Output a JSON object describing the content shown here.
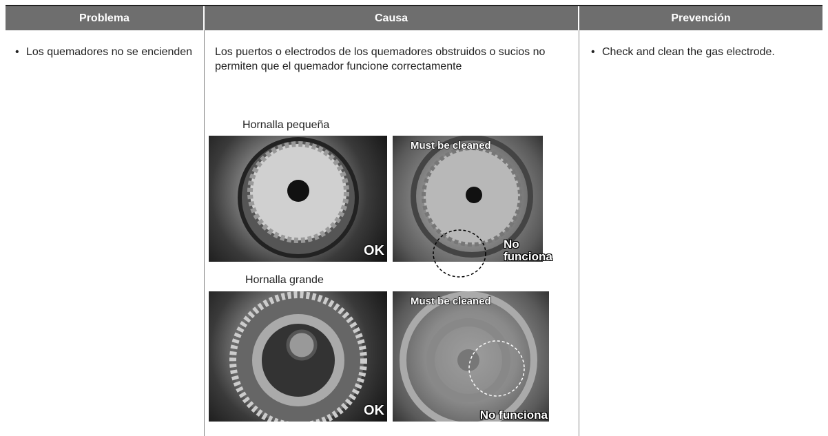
{
  "table": {
    "headers": [
      "Problema",
      "Causa",
      "Prevención"
    ],
    "rows": [
      {
        "problem": "Los quemadores no se encienden",
        "cause": "Los puertos o electrodos de los quemadores obstruidos o sucios no permiten que el quemador funcione correctamente",
        "figures": [
          {
            "caption": "Hornalla pequeña",
            "ok_label": "OK",
            "dirty_label": "Must be cleaned",
            "fail_label": "No funciona"
          },
          {
            "caption": "Hornalla grande",
            "ok_label": "OK",
            "dirty_label": "Must be cleaned",
            "fail_label": "No funciona"
          }
        ],
        "prevention": "Check and clean the gas electrode."
      }
    ]
  }
}
